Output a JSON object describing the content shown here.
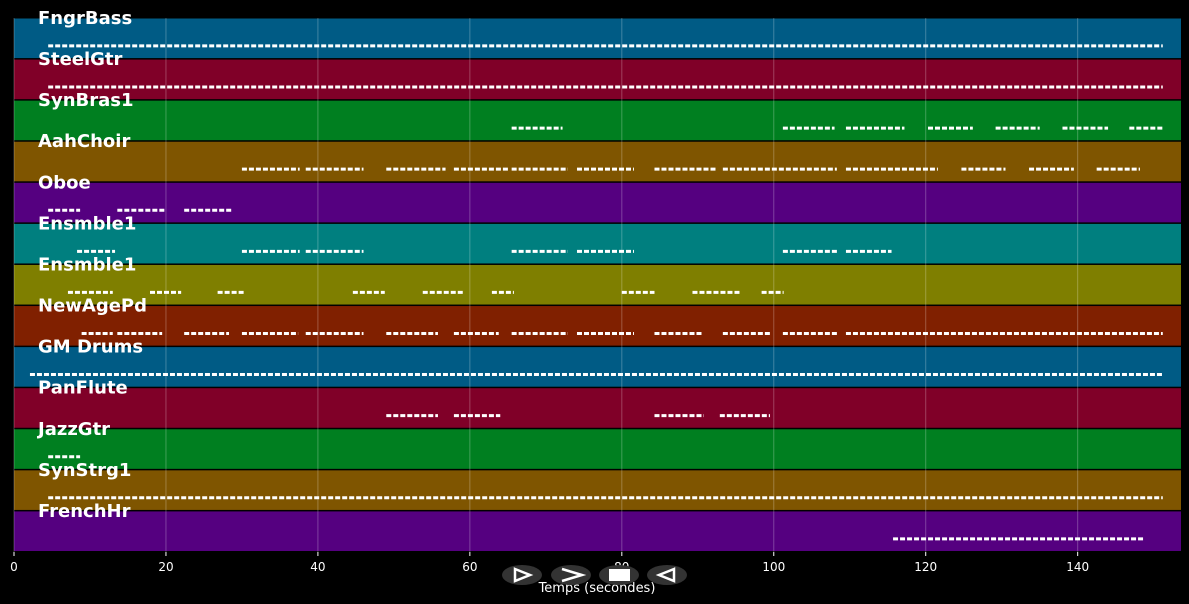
{
  "chart_data": {
    "type": "pianoroll",
    "xlim": [
      0,
      153.6
    ],
    "xticks": [
      0,
      20,
      40,
      60,
      80,
      100,
      120,
      140
    ],
    "grid": true,
    "xlabel": "Temps (secondes)",
    "tracks": [
      {
        "name": "FngrBass",
        "color": "#005b85",
        "notes": [
          [
            4.5,
            151.2
          ]
        ]
      },
      {
        "name": "SteelGtr",
        "color": "#800028",
        "notes": [
          [
            4.5,
            151.2
          ]
        ]
      },
      {
        "name": "SynBras1",
        "color": "#007f20",
        "notes": [
          [
            65.5,
            72.2
          ],
          [
            101.2,
            108
          ],
          [
            109.5,
            117.2
          ],
          [
            120.3,
            126.2
          ],
          [
            129.2,
            135
          ],
          [
            138,
            144
          ],
          [
            146.8,
            151.2
          ]
        ]
      },
      {
        "name": "AahChoir",
        "color": "#7f5500",
        "notes": [
          [
            30,
            37.6
          ],
          [
            38.4,
            46
          ],
          [
            49,
            56.8
          ],
          [
            57.9,
            65.1
          ],
          [
            65.5,
            72.9
          ],
          [
            74.1,
            81.6
          ],
          [
            84.3,
            92.4
          ],
          [
            93.3,
            108.3
          ],
          [
            109.5,
            121.6
          ],
          [
            124.7,
            130.5
          ],
          [
            133.6,
            139.5
          ],
          [
            142.5,
            148.2
          ]
        ]
      },
      {
        "name": "Oboe",
        "color": "#550080",
        "notes": [
          [
            4.5,
            8.7
          ],
          [
            13.6,
            19.9
          ],
          [
            22.4,
            28.7
          ]
        ]
      },
      {
        "name": "Ensmble1",
        "color": "#007f7f",
        "notes": [
          [
            8.3,
            13.3
          ],
          [
            30,
            37.6
          ],
          [
            38.4,
            46
          ],
          [
            65.5,
            72.9
          ],
          [
            74.1,
            81.6
          ],
          [
            101.2,
            108.4
          ],
          [
            109.5,
            115.5
          ]
        ]
      },
      {
        "name": "Ensmble1",
        "color": "#7f7f00",
        "notes": [
          [
            7.1,
            13
          ],
          [
            17.9,
            22
          ],
          [
            26.8,
            30.4
          ],
          [
            44.6,
            48.8
          ],
          [
            53.8,
            59.3
          ],
          [
            62.9,
            65.8
          ],
          [
            80,
            84.3
          ],
          [
            89.3,
            95.5
          ],
          [
            98.4,
            101.3
          ]
        ]
      },
      {
        "name": "NewAgePd",
        "color": "#802000",
        "notes": [
          [
            8.9,
            13
          ],
          [
            13.6,
            19.5
          ],
          [
            22.4,
            28.3
          ],
          [
            30,
            37.4
          ],
          [
            38.4,
            46
          ],
          [
            49,
            55.8
          ],
          [
            57.9,
            63.8
          ],
          [
            65.5,
            72.9
          ],
          [
            74.1,
            81.6
          ],
          [
            84.3,
            90.5
          ],
          [
            93.3,
            99.5
          ],
          [
            101.2,
            108.4
          ],
          [
            109.5,
            151.2
          ]
        ]
      },
      {
        "name": "GM Drums",
        "color": "#005b85",
        "notes": [
          [
            2.1,
            151.2
          ]
        ]
      },
      {
        "name": "PanFlute",
        "color": "#800028",
        "notes": [
          [
            49,
            55.8
          ],
          [
            57.9,
            64
          ],
          [
            84.3,
            90.8
          ],
          [
            92.9,
            99.5
          ]
        ]
      },
      {
        "name": "JazzGtr",
        "color": "#007f20",
        "notes": [
          [
            4.5,
            8.7
          ]
        ]
      },
      {
        "name": "SynStrg1",
        "color": "#7f5500",
        "notes": [
          [
            4.5,
            151.2
          ]
        ]
      },
      {
        "name": "FrenchHr",
        "color": "#550080",
        "notes": [
          [
            115.7,
            148.8
          ]
        ]
      }
    ]
  }
}
